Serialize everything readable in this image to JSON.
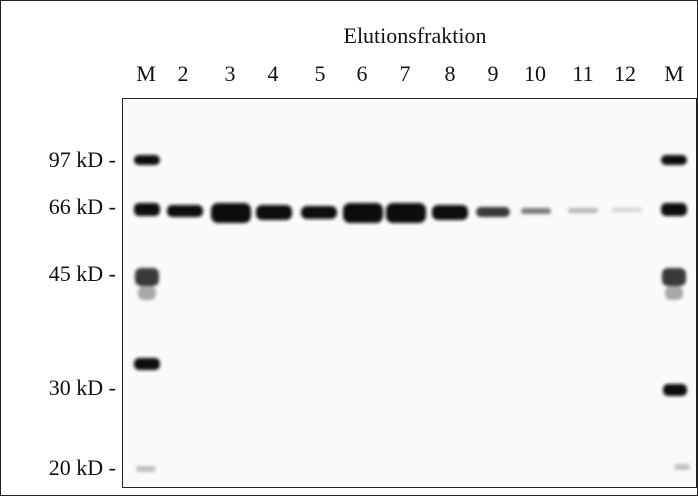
{
  "header": {
    "title": "Elutionsfraktion"
  },
  "lanes": [
    "M",
    "2",
    "3",
    "4",
    "5",
    "6",
    "7",
    "8",
    "9",
    "10",
    "11",
    "12",
    "M"
  ],
  "markers": [
    "97 kD -",
    "66 kD -",
    "45 kD -",
    "30 kD -",
    "20 kD -"
  ]
}
